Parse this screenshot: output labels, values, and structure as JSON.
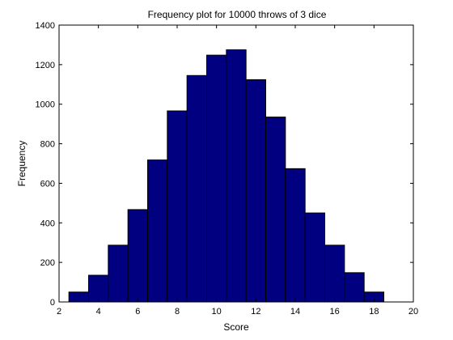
{
  "chart_data": {
    "type": "bar",
    "title": "Frequency plot for 10000 throws of 3 dice",
    "xlabel": "Score",
    "ylabel": "Frequency",
    "xlim": [
      2,
      20
    ],
    "ylim": [
      0,
      1400
    ],
    "xticks": [
      2,
      4,
      6,
      8,
      10,
      12,
      14,
      16,
      18,
      20
    ],
    "yticks": [
      0,
      200,
      400,
      600,
      800,
      1000,
      1200,
      1400
    ],
    "bin_width": 1,
    "categories": [
      3,
      4,
      5,
      6,
      7,
      8,
      9,
      10,
      11,
      12,
      13,
      14,
      15,
      16,
      17,
      18
    ],
    "values": [
      50,
      135,
      287,
      467,
      718,
      966,
      1145,
      1248,
      1275,
      1124,
      935,
      674,
      450,
      287,
      148,
      50
    ],
    "bar_color": "#000080",
    "bar_edge_color": "#000000",
    "grid": false,
    "legend": "none"
  }
}
